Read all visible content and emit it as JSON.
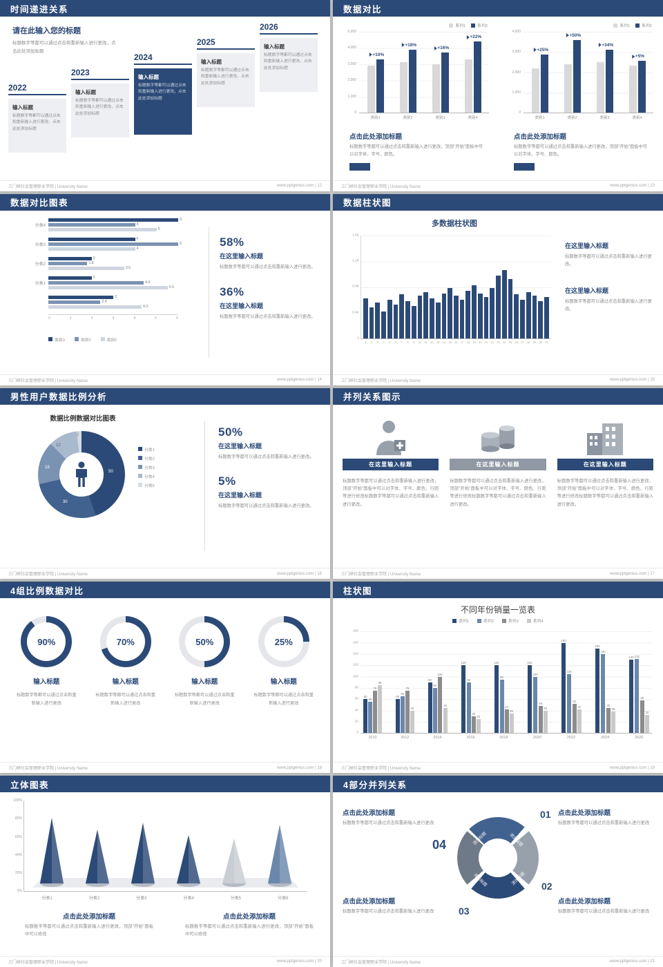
{
  "colors": {
    "navy": "#2c4a77",
    "steel": "#7b93b3",
    "midblue": "#41628f",
    "light_blue": "#a9b9ce",
    "pale": "#d4dbe5",
    "bar_gray": "#d9d9d9",
    "light_hbar": "#cfd6e0",
    "gray_banner": "#8f98a3",
    "ring_gray": "#98a1ab"
  },
  "footer": {
    "org": "三门峡社会管理职业学院 | University Name"
  },
  "slides": {
    "s1": {
      "title": "时间递进关系",
      "footer_right": "www.pptgenius.com | 12",
      "intro_title": "请在此输入您的标题",
      "intro_text": "标题数字等都可以通过点击和重新输入进行更改，点击此处添加标题",
      "items": [
        {
          "year": "2022",
          "box_title": "输入标题",
          "box_text": "标题数字等都可以通过点击和重新输入进行更改，点击此处添加标题"
        },
        {
          "year": "2023",
          "box_title": "输入标题",
          "box_text": "标题数字等都可以通过点击和重新输入进行更改，点击此处添加标题"
        },
        {
          "year": "2024",
          "box_title": "输入标题",
          "box_text": "标题数字等都可以通过点击和重新输入进行更改，点击此处添加标题"
        },
        {
          "year": "2025",
          "box_title": "输入标题",
          "box_text": "标题数字等都可以通过点击和重新输入进行更改，点击此处添加标题"
        },
        {
          "year": "2026",
          "box_title": "输入标题",
          "box_text": "标题数字等都可以通过点击和重新输入进行更改，点击此处添加标题"
        }
      ]
    },
    "s2": {
      "title": "数据对比",
      "footer_right": "www.pptgenius.com | 13",
      "caption_title": "点击此处添加标题",
      "caption_text": "标题数字等都可以通过点击和重新输入进行更改，顶部“开始”面板中可以对字体、字号、颜色。",
      "legend": [
        "系列1",
        "系列2"
      ],
      "charts": [
        {
          "y_labels": [
            "5,000",
            "4,000",
            "3,000",
            "2,000",
            "1,000",
            "0"
          ],
          "categories": [
            "类别1",
            "类别2",
            "类别3",
            "类别4"
          ],
          "pcts": [
            "+10%",
            "+18%",
            "+16%",
            "+22%"
          ],
          "series1": [
            58,
            62,
            60,
            66
          ],
          "series2": [
            66,
            78,
            74,
            88
          ]
        },
        {
          "y_labels": [
            "4,000",
            "3,000",
            "2,000",
            "1,000",
            "0"
          ],
          "categories": [
            "类别1",
            "类别2",
            "类别3",
            "类别4"
          ],
          "pcts": [
            "+25%",
            "+50%",
            "+34%",
            "+5%"
          ],
          "series1": [
            55,
            60,
            62,
            58
          ],
          "series2": [
            72,
            90,
            78,
            64
          ]
        }
      ]
    },
    "s3": {
      "title": "数据对比图表",
      "footer_right": "www.pptgenius.com | 14",
      "xmax": 6,
      "x_ticks": [
        "0",
        "1",
        "2",
        "3",
        "4",
        "5",
        "6"
      ],
      "legend": [
        "类别3",
        "类别2",
        "类别1"
      ],
      "groups": [
        {
          "label": "分类4",
          "values": [
            6,
            4,
            5
          ]
        },
        {
          "label": "分类3",
          "values": [
            4,
            6,
            4
          ]
        },
        {
          "label": "分类2",
          "values": [
            2,
            1.8,
            3.5
          ]
        },
        {
          "label": "分类1",
          "values": [
            2,
            4.4,
            5.5
          ]
        },
        {
          "label": "",
          "values": [
            3,
            2.4,
            4.3
          ]
        }
      ],
      "stats": [
        {
          "pct": "58%",
          "title": "在这里输入标题",
          "text": "标题数字等都可以通过点击和重新输入进行更改。"
        },
        {
          "pct": "36%",
          "title": "在这里输入标题",
          "text": "标题数字等都可以通过点击和重新输入进行更改。"
        }
      ]
    },
    "s4": {
      "title": "数据柱状图",
      "footer_right": "www.pptgenius.com | 15",
      "chart_title": "多数据柱状图",
      "ymax": 1600,
      "y_labels": [
        "1.6K",
        "1.2K",
        "0.8K",
        "0.4K",
        "0"
      ],
      "values": [
        620,
        480,
        560,
        420,
        600,
        520,
        680,
        580,
        500,
        660,
        720,
        620,
        560,
        700,
        780,
        660,
        600,
        740,
        820,
        700,
        640,
        780,
        980,
        1060,
        920,
        680,
        600,
        720,
        660,
        580,
        640
      ],
      "blocks": [
        {
          "title": "在这里输入标题",
          "text": "标题数字等都可以通过点击和重新输入进行更改。"
        },
        {
          "title": "在这里输入标题",
          "text": "标题数字等都可以通过点击和重新输入进行更改。"
        }
      ]
    },
    "s5": {
      "title": "男性用户数据比例分析",
      "footer_right": "www.pptgenius.com | 16",
      "chart_title": "数据比例数据对比图表",
      "segments": [
        {
          "label": "分类1",
          "value": 50,
          "color": "#2c4a77"
        },
        {
          "label": "分类2",
          "value": 30,
          "color": "#41628f"
        },
        {
          "label": "分类3",
          "value": 18,
          "color": "#7b93b3"
        },
        {
          "label": "分类4",
          "value": 12,
          "color": "#a9b9ce"
        },
        {
          "label": "分类5",
          "value": 2,
          "color": "#d4dbe5"
        }
      ],
      "stats": [
        {
          "pct": "50%",
          "title": "在这里输入标题",
          "text": "标题数字等都可以通过点击和重新输入进行更改。"
        },
        {
          "pct": "5%",
          "title": "在这里输入标题",
          "text": "标题数字等都可以通过点击和重新输入进行更改。"
        }
      ]
    },
    "s6": {
      "title": "并列关系图示",
      "footer_right": "www.pptgenius.com | 17",
      "columns": [
        {
          "icon": "nurse-icon",
          "banner": "在这里输入标题",
          "banner_color": "#2c4a77",
          "text": "标题数字等都可以通过点击和重新输入进行更改，顶部“开始”面板中可以对字体、字号、颜色、行距等进行修改标题数字等都可以通过点击和重新输入进行更改。"
        },
        {
          "icon": "cylinder-icon",
          "banner": "在这里输入标题",
          "banner_color": "#8f98a3",
          "text": "标题数字等都可以通过点击和重新输入进行更改，顶部“开始”面板中可以对字体、字号、颜色、行距等进行修改标题数字等都可以通过点击和重新输入进行更改。"
        },
        {
          "icon": "building-icon",
          "banner": "在这里输入标题",
          "banner_color": "#2c4a77",
          "text": "标题数字等都可以通过点击和重新输入进行更改，顶部“开始”面板中可以对字体、字号、颜色、行距等进行修改标题数字等都可以通过点击和重新输入进行更改。"
        }
      ]
    },
    "s7": {
      "title": "4组比例数据对比",
      "footer_right": "www.pptgenius.com | 18",
      "gauges": [
        {
          "pct": "90%",
          "value": 90,
          "label": "输入标题",
          "text": "标题数字等都可以通过点击和重新输入进行更改"
        },
        {
          "pct": "70%",
          "value": 70,
          "label": "输入标题",
          "text": "标题数字等都可以通过点击和重新输入进行更改"
        },
        {
          "pct": "50%",
          "value": 50,
          "label": "输入标题",
          "text": "标题数字等都可以通过点击和重新输入进行更改"
        },
        {
          "pct": "25%",
          "value": 25,
          "label": "输入标题",
          "text": "标题数字等都可以通过点击和重新输入进行更改"
        }
      ]
    },
    "s8": {
      "title": "柱状图",
      "footer_right": "www.pptgenius.com | 19",
      "chart_title": "不同年份销量一览表",
      "legend": [
        "系列1",
        "系列2",
        "系列3",
        "系列4"
      ],
      "series_colors": [
        "#2c4a77",
        "#6b87ab",
        "#8c8c8c",
        "#c9c9c9"
      ],
      "ymax": 180,
      "y_labels": [
        "180",
        "160",
        "140",
        "120",
        "100",
        "80",
        "60",
        "40",
        "20",
        "0"
      ],
      "groups": [
        {
          "year": "2010",
          "values": [
            60,
            55,
            75,
            85
          ]
        },
        {
          "year": "2012",
          "values": [
            60,
            65,
            75,
            40
          ]
        },
        {
          "year": "2014",
          "values": [
            90,
            80,
            100,
            45
          ]
        },
        {
          "year": "2016",
          "values": [
            120,
            90,
            30,
            25
          ]
        },
        {
          "year": "2018",
          "values": [
            120,
            95,
            42,
            35
          ]
        },
        {
          "year": "2020",
          "values": [
            120,
            100,
            48,
            40
          ]
        },
        {
          "year": "2022",
          "values": [
            160,
            105,
            52,
            42
          ]
        },
        {
          "year": "2024",
          "values": [
            150,
            140,
            45,
            38
          ]
        },
        {
          "year": "2026",
          "values": [
            130,
            132,
            58,
            32
          ]
        }
      ]
    },
    "s9": {
      "title": "立体图表",
      "footer_right": "www.pptgenius.com | 20",
      "y_labels": [
        "100%",
        "80%",
        "60%",
        "40%",
        "20%",
        "0%"
      ],
      "cones": [
        {
          "label": "分类1",
          "value": 95,
          "color": "#2c4a77"
        },
        {
          "label": "分类2",
          "value": 78,
          "color": "#2c4a77"
        },
        {
          "label": "分类3",
          "value": 88,
          "color": "#2c4a77"
        },
        {
          "label": "分类4",
          "value": 70,
          "color": "#2c4a77"
        },
        {
          "label": "分类5",
          "value": 65,
          "color": "#c9cdd4"
        },
        {
          "label": "分类6",
          "value": 85,
          "color": "#6b87ab"
        }
      ],
      "captions": [
        {
          "title": "点击此处添加标题",
          "text": "标题数字等都可以通过点击和重新输入进行更改，顶部“开始”面板中可以修改"
        },
        {
          "title": "点击此处添加标题",
          "text": "标题数字等都可以通过点击和重新输入进行更改，顶部“开始”面板中可以修改"
        }
      ]
    },
    "s10": {
      "title": "4部分并列关系",
      "footer_right": "www.pptgenius.com | 21",
      "numbers": [
        "01",
        "02",
        "03",
        "04"
      ],
      "seg_label": "添加标题",
      "blocks": [
        {
          "title": "点击此处添加标题",
          "text": "标题数字等都可以通过点击和重新输入进行更改"
        },
        {
          "title": "点击此处添加标题",
          "text": "标题数字等都可以通过点击和重新输入进行更改"
        },
        {
          "title": "点击此处添加标题",
          "text": "标题数字等都可以通过点击和重新输入进行更改"
        },
        {
          "title": "点击此处添加标题",
          "text": "标题数字等都可以通过点击和重新输入进行更改"
        }
      ]
    }
  }
}
